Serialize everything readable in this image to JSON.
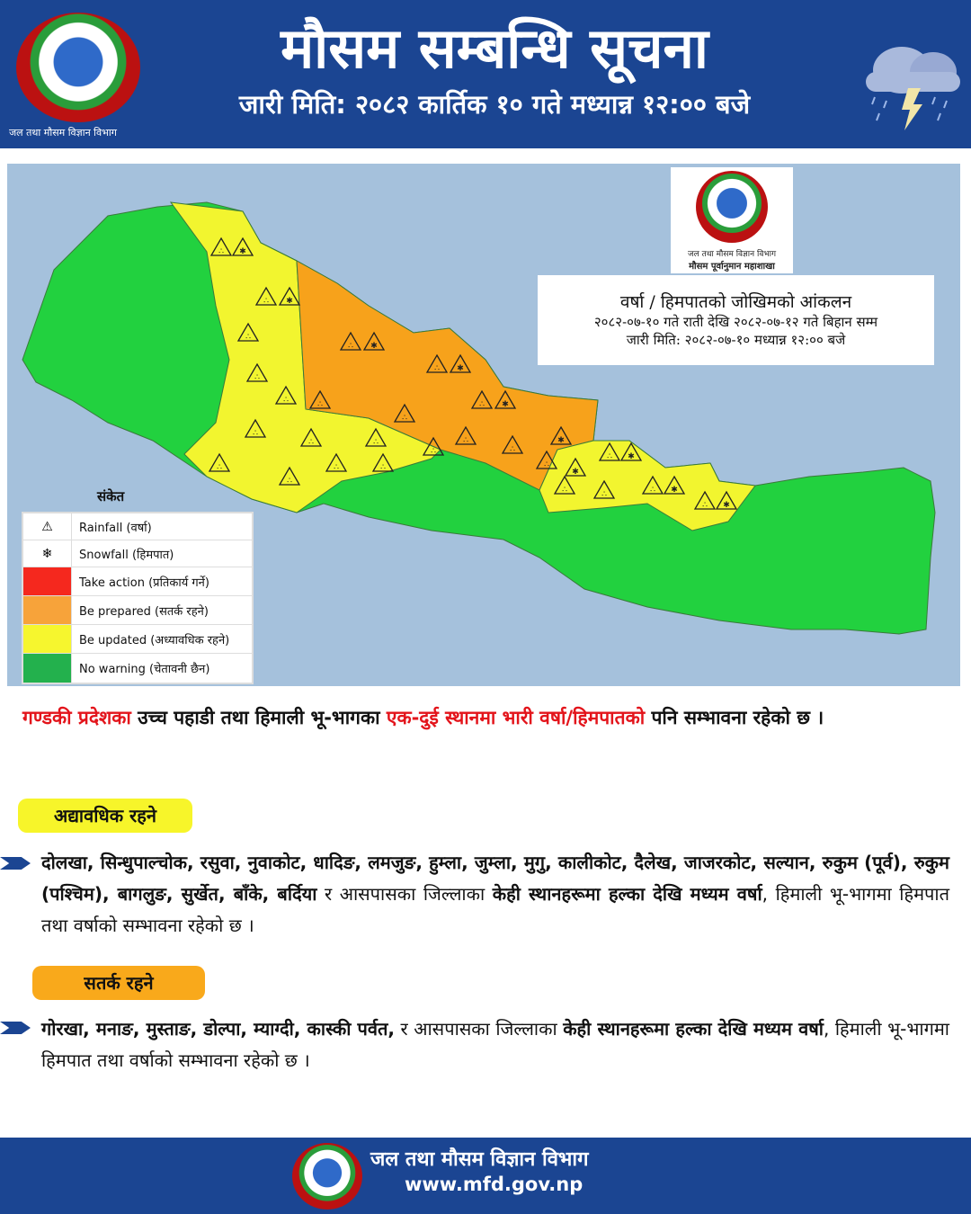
{
  "header": {
    "title": "मौसम सम्बन्धि सूचना",
    "subtitle": "जारी मिति: २०८२ कार्तिक १० गते मध्यान्न १२:०० बजे",
    "department": "जल तथा मौसम विज्ञान विभाग",
    "weather_icon": "cloud-lightning-rain-icon"
  },
  "map": {
    "logo_line1": "जल तथा मौसम विज्ञान विभाग",
    "logo_line2": "मौसम पूर्वानुमान महाशाखा",
    "info_title": "वर्षा / हिमपातको  जोखिमको आंकलन",
    "info_period": "२०८२-०७-१० गते राती देखि २०८२-०७-१२ गते बिहान सम्म",
    "info_issued": "जारी मिति: २०८२-०७-१० मध्यान्न १२:०० बजे",
    "legend_title": "संकेत",
    "legend": [
      {
        "label": "Rainfall (वर्षा)",
        "icon": "rainfall-icon"
      },
      {
        "label": "Snowfall (हिमपात)",
        "icon": "snowfall-icon"
      },
      {
        "label": "Take action (प्रतिकार्य गर्ने)",
        "color": "#f5281e"
      },
      {
        "label": "Be prepared (सतर्क रहने)",
        "color": "#f7a33a"
      },
      {
        "label": "Be updated (अध्यावधिक रहने)",
        "color": "#f6f62e"
      },
      {
        "label": "No warning (चेतावनी छैन)",
        "color": "#23b14d"
      }
    ],
    "zone_colors": {
      "green": "#22d13f",
      "yellow": "#f2f52f",
      "orange": "#f7a21b"
    }
  },
  "summary": {
    "red1": "गण्डकी प्रदेशका",
    "text1": " उच्च पहाडी तथा हिमाली भू-भागका ",
    "red2": "एक-दुई स्थानमा भारी वर्षा/हिमपातको",
    "text2": " पनि सम्भावना रहेको छ ।"
  },
  "updated": {
    "label": "अद्यावधिक रहने",
    "bold1": "दोलखा, सिन्धुपाल्चोक, रसुवा, नुवाकोट, धादिङ, लमजुङ, हुम्ला, जुम्ला, मुगु, कालीकोट, दैलेख, जाजरकोट, सल्यान, रुकुम (पूर्व), रुकुम (पश्चिम), बागलुङ, सुर्खेत, बाँके, बर्दिया",
    "text1": " र आसपासका जिल्लाका ",
    "bold2": "केही स्थानहरूमा हल्का देखि मध्यम वर्षा",
    "text2": ", हिमाली भू-भागमा हिमपात तथा वर्षाको सम्भावना रहेको छ ।"
  },
  "prepared": {
    "label": "सतर्क रहने",
    "bold1": "गोरखा, मनाङ, मुस्ताङ, डोल्पा, म्याग्दी, कास्की पर्वत,",
    "text1": " र आसपासका जिल्लाका ",
    "bold2": "केही स्थानहरूमा हल्का देखि मध्यम वर्षा",
    "text2": ", हिमाली भू-भागमा हिमपात तथा वर्षाको सम्भावना रहेको छ ।"
  },
  "footer": {
    "department": "जल तथा मौसम विज्ञान विभाग",
    "website": "www.mfd.gov.np"
  }
}
